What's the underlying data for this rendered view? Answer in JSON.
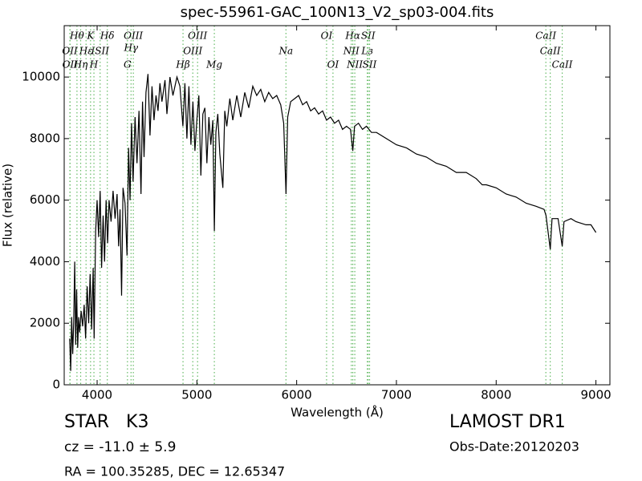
{
  "chart_data": {
    "type": "line",
    "title": "spec-55961-GAC_100N13_V2_sp03-004.fits",
    "xlabel": "Wavelength (Å)",
    "ylabel": "Flux (relative)",
    "xlim": [
      3670,
      9140
    ],
    "ylim": [
      0,
      11670
    ],
    "xticks": [
      4000,
      5000,
      6000,
      7000,
      8000,
      9000
    ],
    "yticks": [
      0,
      2000,
      4000,
      6000,
      8000,
      10000
    ],
    "grid": false,
    "line_color": "#000000",
    "marker_color": "#66bb66",
    "x": [
      3725,
      3735,
      3745,
      3755,
      3765,
      3775,
      3785,
      3795,
      3805,
      3815,
      3825,
      3840,
      3855,
      3870,
      3885,
      3900,
      3915,
      3930,
      3945,
      3960,
      3970,
      3985,
      4000,
      4015,
      4030,
      4045,
      4060,
      4075,
      4090,
      4105,
      4120,
      4140,
      4160,
      4180,
      4200,
      4215,
      4230,
      4245,
      4260,
      4280,
      4300,
      4315,
      4330,
      4345,
      4360,
      4380,
      4400,
      4420,
      4440,
      4455,
      4470,
      4490,
      4510,
      4530,
      4550,
      4570,
      4590,
      4610,
      4630,
      4650,
      4680,
      4700,
      4730,
      4760,
      4800,
      4830,
      4860,
      4880,
      4900,
      4920,
      4940,
      4960,
      4980,
      5000,
      5020,
      5040,
      5060,
      5080,
      5100,
      5120,
      5140,
      5160,
      5175,
      5190,
      5210,
      5230,
      5260,
      5280,
      5300,
      5330,
      5360,
      5400,
      5440,
      5480,
      5520,
      5560,
      5600,
      5640,
      5680,
      5720,
      5760,
      5800,
      5840,
      5870,
      5893,
      5910,
      5940,
      5980,
      6020,
      6060,
      6100,
      6140,
      6180,
      6220,
      6260,
      6300,
      6340,
      6380,
      6420,
      6460,
      6500,
      6540,
      6563,
      6580,
      6620,
      6660,
      6700,
      6750,
      6800,
      6900,
      7000,
      7100,
      7200,
      7300,
      7400,
      7500,
      7600,
      7700,
      7800,
      7860,
      7900,
      8000,
      8100,
      8200,
      8300,
      8400,
      8480,
      8500,
      8542,
      8560,
      8620,
      8662,
      8680,
      8750,
      8800,
      8900,
      8950,
      9000
    ],
    "values": [
      1500,
      450,
      2200,
      1000,
      2000,
      4000,
      1300,
      3100,
      1200,
      2200,
      1700,
      2400,
      1900,
      2600,
      1500,
      3200,
      2000,
      3600,
      1800,
      3800,
      1500,
      5000,
      6000,
      4800,
      6300,
      3800,
      5500,
      4000,
      6000,
      4600,
      6000,
      5300,
      6300,
      5400,
      6200,
      4500,
      5700,
      2900,
      6400,
      5900,
      4200,
      7700,
      6000,
      8500,
      6600,
      8700,
      7200,
      8900,
      6200,
      9200,
      7400,
      9500,
      10100,
      8100,
      9700,
      8600,
      9400,
      8900,
      9800,
      9200,
      9900,
      8800,
      10000,
      9400,
      10000,
      9700,
      8400,
      9800,
      8000,
      9700,
      7800,
      9200,
      7600,
      8600,
      9400,
      6800,
      8800,
      9000,
      7200,
      8700,
      7800,
      8600,
      5000,
      8200,
      8800,
      7500,
      6400,
      8900,
      8400,
      9300,
      8600,
      9400,
      8700,
      9500,
      9000,
      9700,
      9400,
      9600,
      9200,
      9500,
      9300,
      9400,
      9100,
      8500,
      6200,
      8700,
      9200,
      9300,
      9400,
      9100,
      9200,
      8900,
      9000,
      8800,
      8900,
      8600,
      8700,
      8500,
      8600,
      8300,
      8400,
      8300,
      7600,
      8400,
      8500,
      8300,
      8400,
      8200,
      8200,
      8000,
      7800,
      7700,
      7500,
      7400,
      7200,
      7100,
      6900,
      6900,
      6700,
      6500,
      6500,
      6400,
      6200,
      6100,
      5900,
      5800,
      5700,
      5500,
      4400,
      5400,
      5400,
      4500,
      5300,
      5400,
      5300,
      5200,
      5200,
      4950
    ],
    "spectral_lines": [
      {
        "label": "Hθ",
        "x": 3798
      },
      {
        "label": "K",
        "x": 3934
      },
      {
        "label": "Hδ",
        "x": 4102
      },
      {
        "label": "OIII",
        "x": 4363
      },
      {
        "label": "OIII",
        "x": 5007
      },
      {
        "label": "OI",
        "x": 6300
      },
      {
        "label": "Hα",
        "x": 6563
      },
      {
        "label": "SII",
        "x": 6717
      },
      {
        "label": "CaII",
        "x": 8498
      },
      {
        "label": "OII",
        "x": 3727
      },
      {
        "label": "Hε",
        "x": 3889
      },
      {
        "label": "ISII",
        "x": 4030
      },
      {
        "label": "Hγ",
        "x": 4340
      },
      {
        "label": "OIII",
        "x": 4959
      },
      {
        "label": "Na",
        "x": 5893
      },
      {
        "label": "NII",
        "x": 6548
      },
      {
        "label": "Lз",
        "x": 6708
      },
      {
        "label": "CaII",
        "x": 8542
      },
      {
        "label": "OII",
        "x": 3729
      },
      {
        "label": "Hη",
        "x": 3835
      },
      {
        "label": "H",
        "x": 3968
      },
      {
        "label": "G",
        "x": 4304
      },
      {
        "label": "Hβ",
        "x": 4861
      },
      {
        "label": "Mg",
        "x": 5175
      },
      {
        "label": "OI",
        "x": 6364
      },
      {
        "label": "NII",
        "x": 6583
      },
      {
        "label": "SII",
        "x": 6731
      },
      {
        "label": "CaII",
        "x": 8662
      }
    ],
    "info": {
      "object": "STAR   K3",
      "survey": "LAMOST DR1",
      "redshift": "cz = -11.0 ± 5.9",
      "date": "Obs-Date:20120203",
      "coords": "RA = 100.35285, DEC = 12.65347"
    }
  }
}
